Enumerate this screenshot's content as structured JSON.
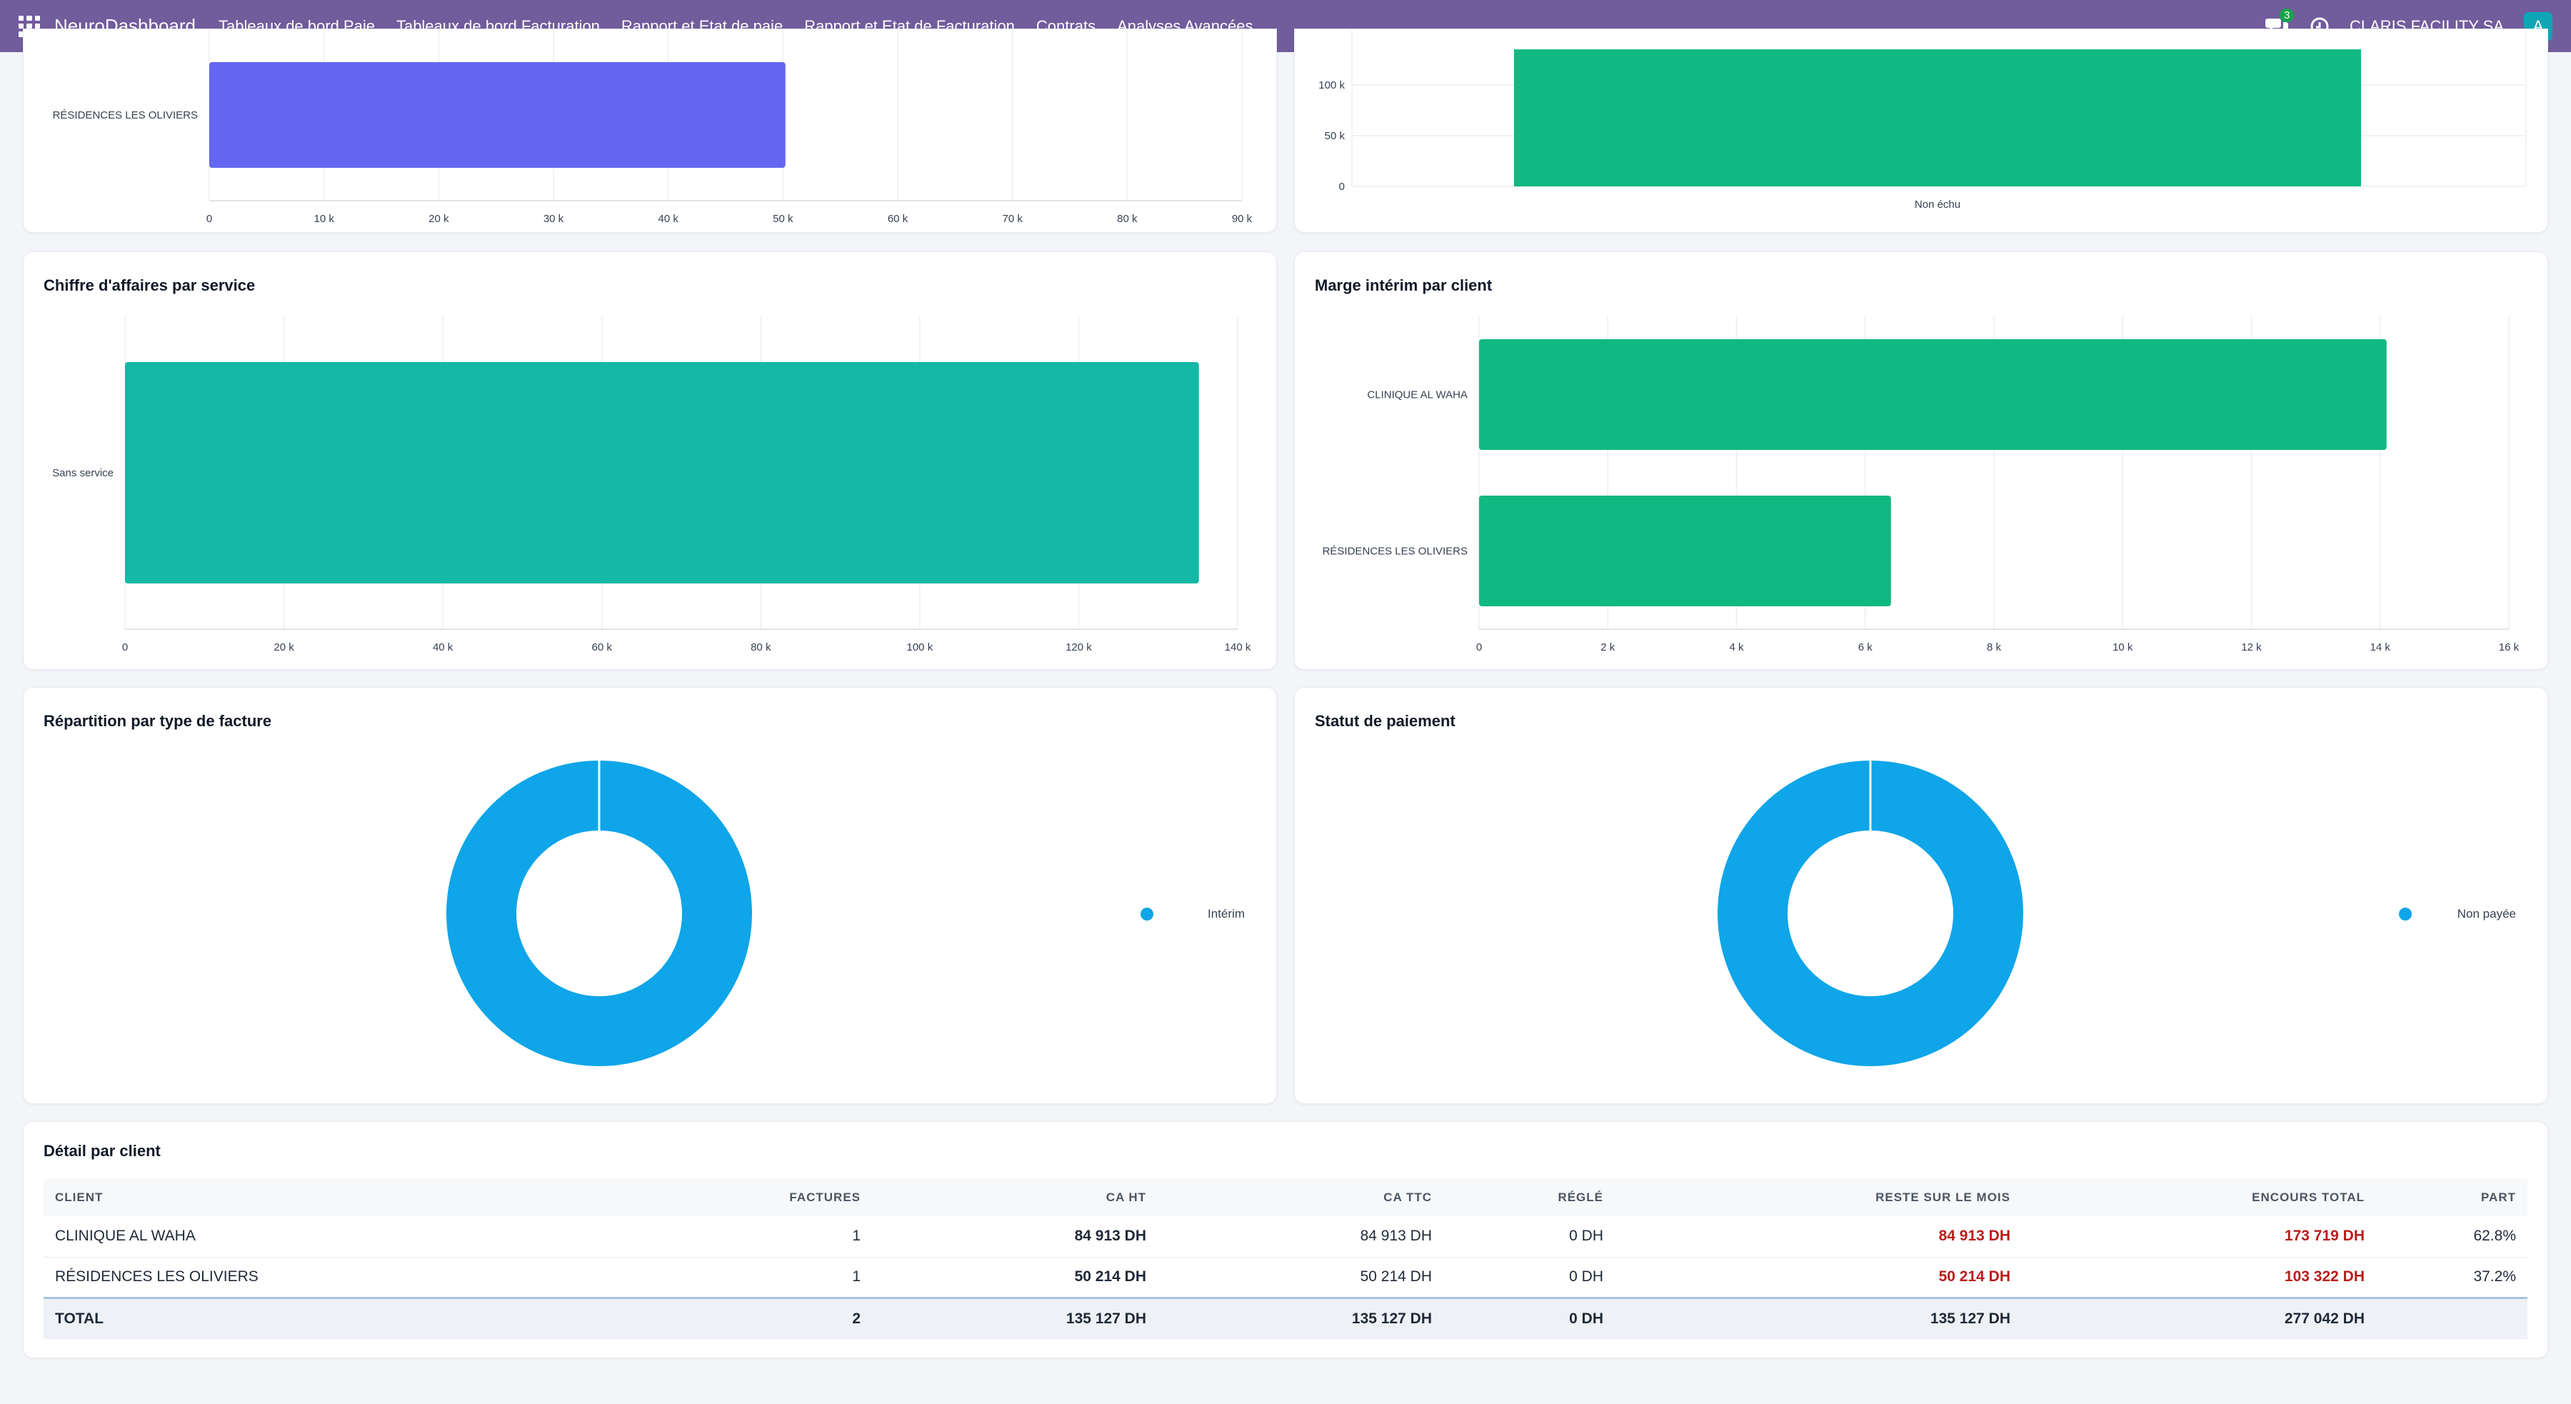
{
  "navbar": {
    "brand": "NeuroDashboard",
    "menu": [
      "Tableaux de bord Paie",
      "Tableaux de bord Facturation",
      "Rapport et Etat de paie",
      "Rapport et Etat de Facturation",
      "Contrats",
      "Analyses Avancées"
    ],
    "messages_count": "3",
    "company": "CLARIS FACILITY SA",
    "avatar_letter": "A"
  },
  "colors": {
    "nav": "#715c9c",
    "indigo": "#6366f1",
    "green": "#10b981",
    "teal": "#14b8a6",
    "blue": "#0ea5e9",
    "red": "#b91c1c"
  },
  "charts": {
    "top_left": {
      "chart_data": {
        "type": "bar",
        "orientation": "horizontal",
        "categories": [
          "RÉSIDENCES LES OLIVIERS"
        ],
        "values": [
          50214
        ],
        "xlim": [
          0,
          90000
        ],
        "ticks": [
          "0",
          "10 k",
          "20 k",
          "30 k",
          "40 k",
          "50 k",
          "60 k",
          "70 k",
          "80 k",
          "90 k"
        ]
      }
    },
    "top_right": {
      "chart_data": {
        "type": "bar",
        "categories": [
          "Non échu"
        ],
        "values": [
          135127
        ],
        "ticks": [
          "0",
          "50 k",
          "100 k"
        ]
      }
    },
    "ca_service": {
      "title": "Chiffre d'affaires par service",
      "chart_data": {
        "type": "bar",
        "orientation": "horizontal",
        "categories": [
          "Sans service"
        ],
        "values": [
          135127
        ],
        "xlim": [
          0,
          140000
        ],
        "ticks": [
          "0",
          "20 k",
          "40 k",
          "60 k",
          "80 k",
          "100 k",
          "120 k",
          "140 k"
        ]
      }
    },
    "marge_client": {
      "title": "Marge intérim par client",
      "chart_data": {
        "type": "bar",
        "orientation": "horizontal",
        "categories": [
          "CLINIQUE AL WAHA",
          "RÉSIDENCES LES OLIVIERS"
        ],
        "values": [
          14100,
          6400
        ],
        "xlim": [
          0,
          16000
        ],
        "ticks": [
          "0",
          "2 k",
          "4 k",
          "6 k",
          "8 k",
          "10 k",
          "12 k",
          "14 k",
          "16 k"
        ]
      }
    },
    "type_facture": {
      "title": "Répartition par type de facture",
      "chart_data": {
        "type": "pie",
        "donut": true,
        "labels": [
          "Intérim"
        ],
        "values": [
          100
        ],
        "legend": "right"
      }
    },
    "statut_paiement": {
      "title": "Statut de paiement",
      "chart_data": {
        "type": "pie",
        "donut": true,
        "labels": [
          "Non payée"
        ],
        "values": [
          100
        ],
        "legend": "right"
      }
    }
  },
  "table": {
    "title": "Détail par client",
    "headers": [
      "Client",
      "Factures",
      "CA HT",
      "CA TTC",
      "Réglé",
      "Reste sur le mois",
      "Encours total",
      "Part"
    ],
    "rows": [
      [
        "CLINIQUE AL WAHA",
        "1",
        "84 913 DH",
        "84 913 DH",
        "0 DH",
        "84 913 DH",
        "173 719 DH",
        "62.8%"
      ],
      [
        "RÉSIDENCES LES OLIVIERS",
        "1",
        "50 214 DH",
        "50 214 DH",
        "0 DH",
        "50 214 DH",
        "103 322 DH",
        "37.2%"
      ]
    ],
    "total": [
      "TOTAL",
      "2",
      "135 127 DH",
      "135 127 DH",
      "0 DH",
      "135 127 DH",
      "277 042 DH",
      ""
    ]
  }
}
